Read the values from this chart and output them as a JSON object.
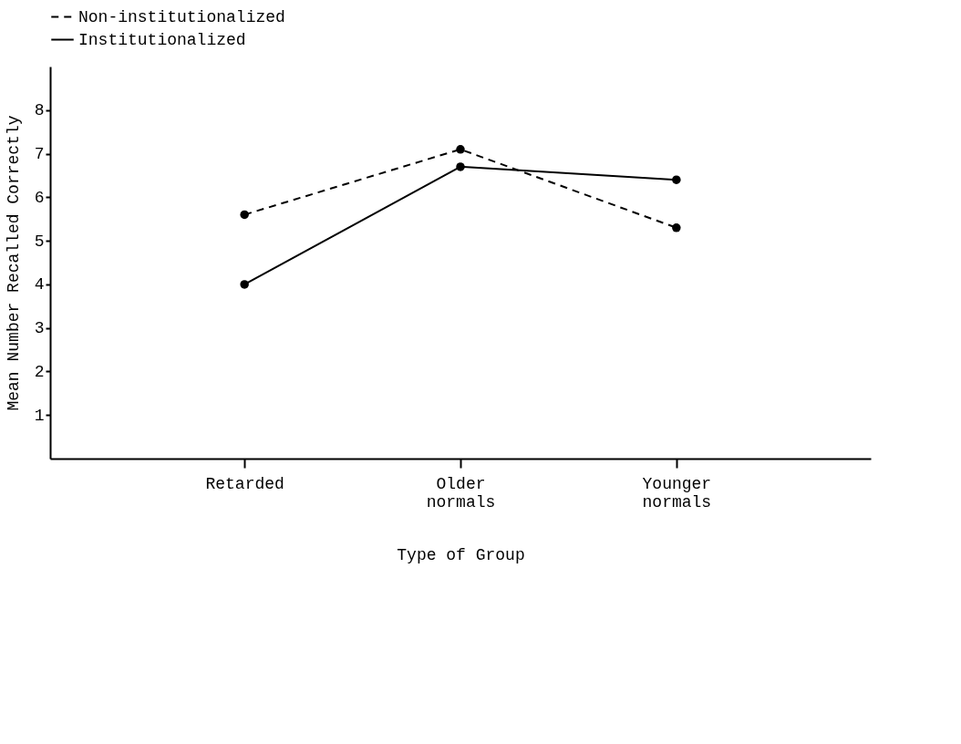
{
  "chart_data": {
    "type": "line",
    "xlabel": "Type of Group",
    "ylabel": "Mean Number Recalled Correctly",
    "categories": [
      "Retarded",
      "Older\nnormals",
      "Younger\nnormals"
    ],
    "series": [
      {
        "name": "Non-institutionalized",
        "color": "#000000",
        "line_style": "dashed",
        "values": [
          5.6,
          7.1,
          5.3
        ]
      },
      {
        "name": "Institutionalized",
        "color": "#000000",
        "line_style": "solid",
        "values": [
          4.0,
          6.7,
          6.4
        ]
      }
    ],
    "ylim": [
      0,
      9
    ],
    "yticks": [
      1,
      2,
      3,
      4,
      5,
      6,
      7,
      8
    ],
    "grid": false,
    "legend": "top",
    "marker": "circle"
  }
}
